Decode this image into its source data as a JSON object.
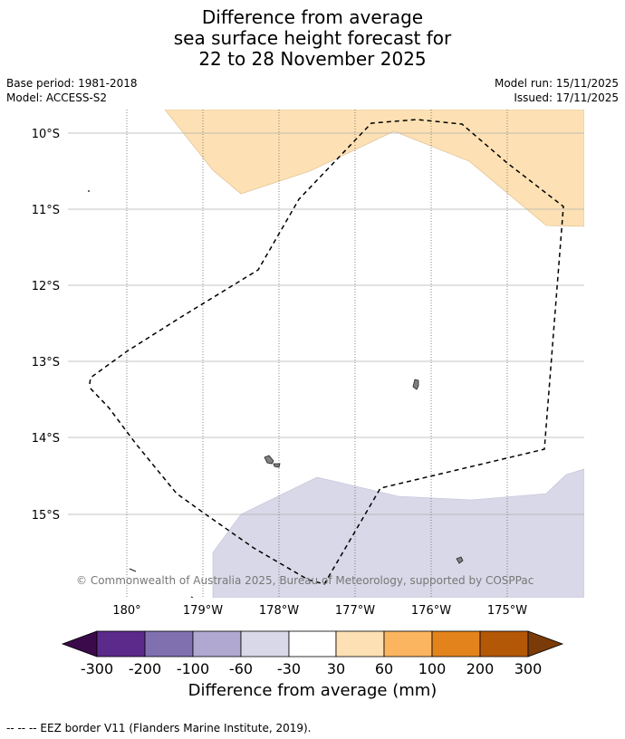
{
  "title": {
    "line1": "Difference from average",
    "line2": "sea surface height forecast for",
    "line3": "22 to 28 November 2025"
  },
  "meta": {
    "base_period": "Base period: 1981-2018",
    "model": "Model: ACCESS-S2",
    "model_run": "Model run: 15/11/2025",
    "issued": "Issued: 17/11/2025"
  },
  "map": {
    "lat_labels": [
      "10°S",
      "11°S",
      "12°S",
      "13°S",
      "14°S",
      "15°S"
    ],
    "lon_labels": [
      "180°",
      "179°W",
      "178°W",
      "177°W",
      "176°W",
      "175°W"
    ],
    "copyright": "© Commonwealth of Australia 2025, Bureau of Meteorology, supported by COSPPac",
    "region_colors": {
      "positive": "#fde1b4",
      "negative": "#d8d8e8",
      "land": "#808080"
    }
  },
  "colorbar": {
    "ticks": [
      "-300",
      "-200",
      "-100",
      "-60",
      "-30",
      "30",
      "60",
      "100",
      "200",
      "300"
    ],
    "colors": [
      "#3a0a4a",
      "#5b2a8a",
      "#8070b0",
      "#b0a8d0",
      "#d8d8e8",
      "#ffffff",
      "#fde1b4",
      "#fbb560",
      "#e3831b",
      "#b35806",
      "#7a3b08"
    ],
    "label": "Difference from average (mm)"
  },
  "footer": {
    "legend_text": "--  --  -- EEZ border V11 (Flanders Marine Institute, 2019)."
  }
}
